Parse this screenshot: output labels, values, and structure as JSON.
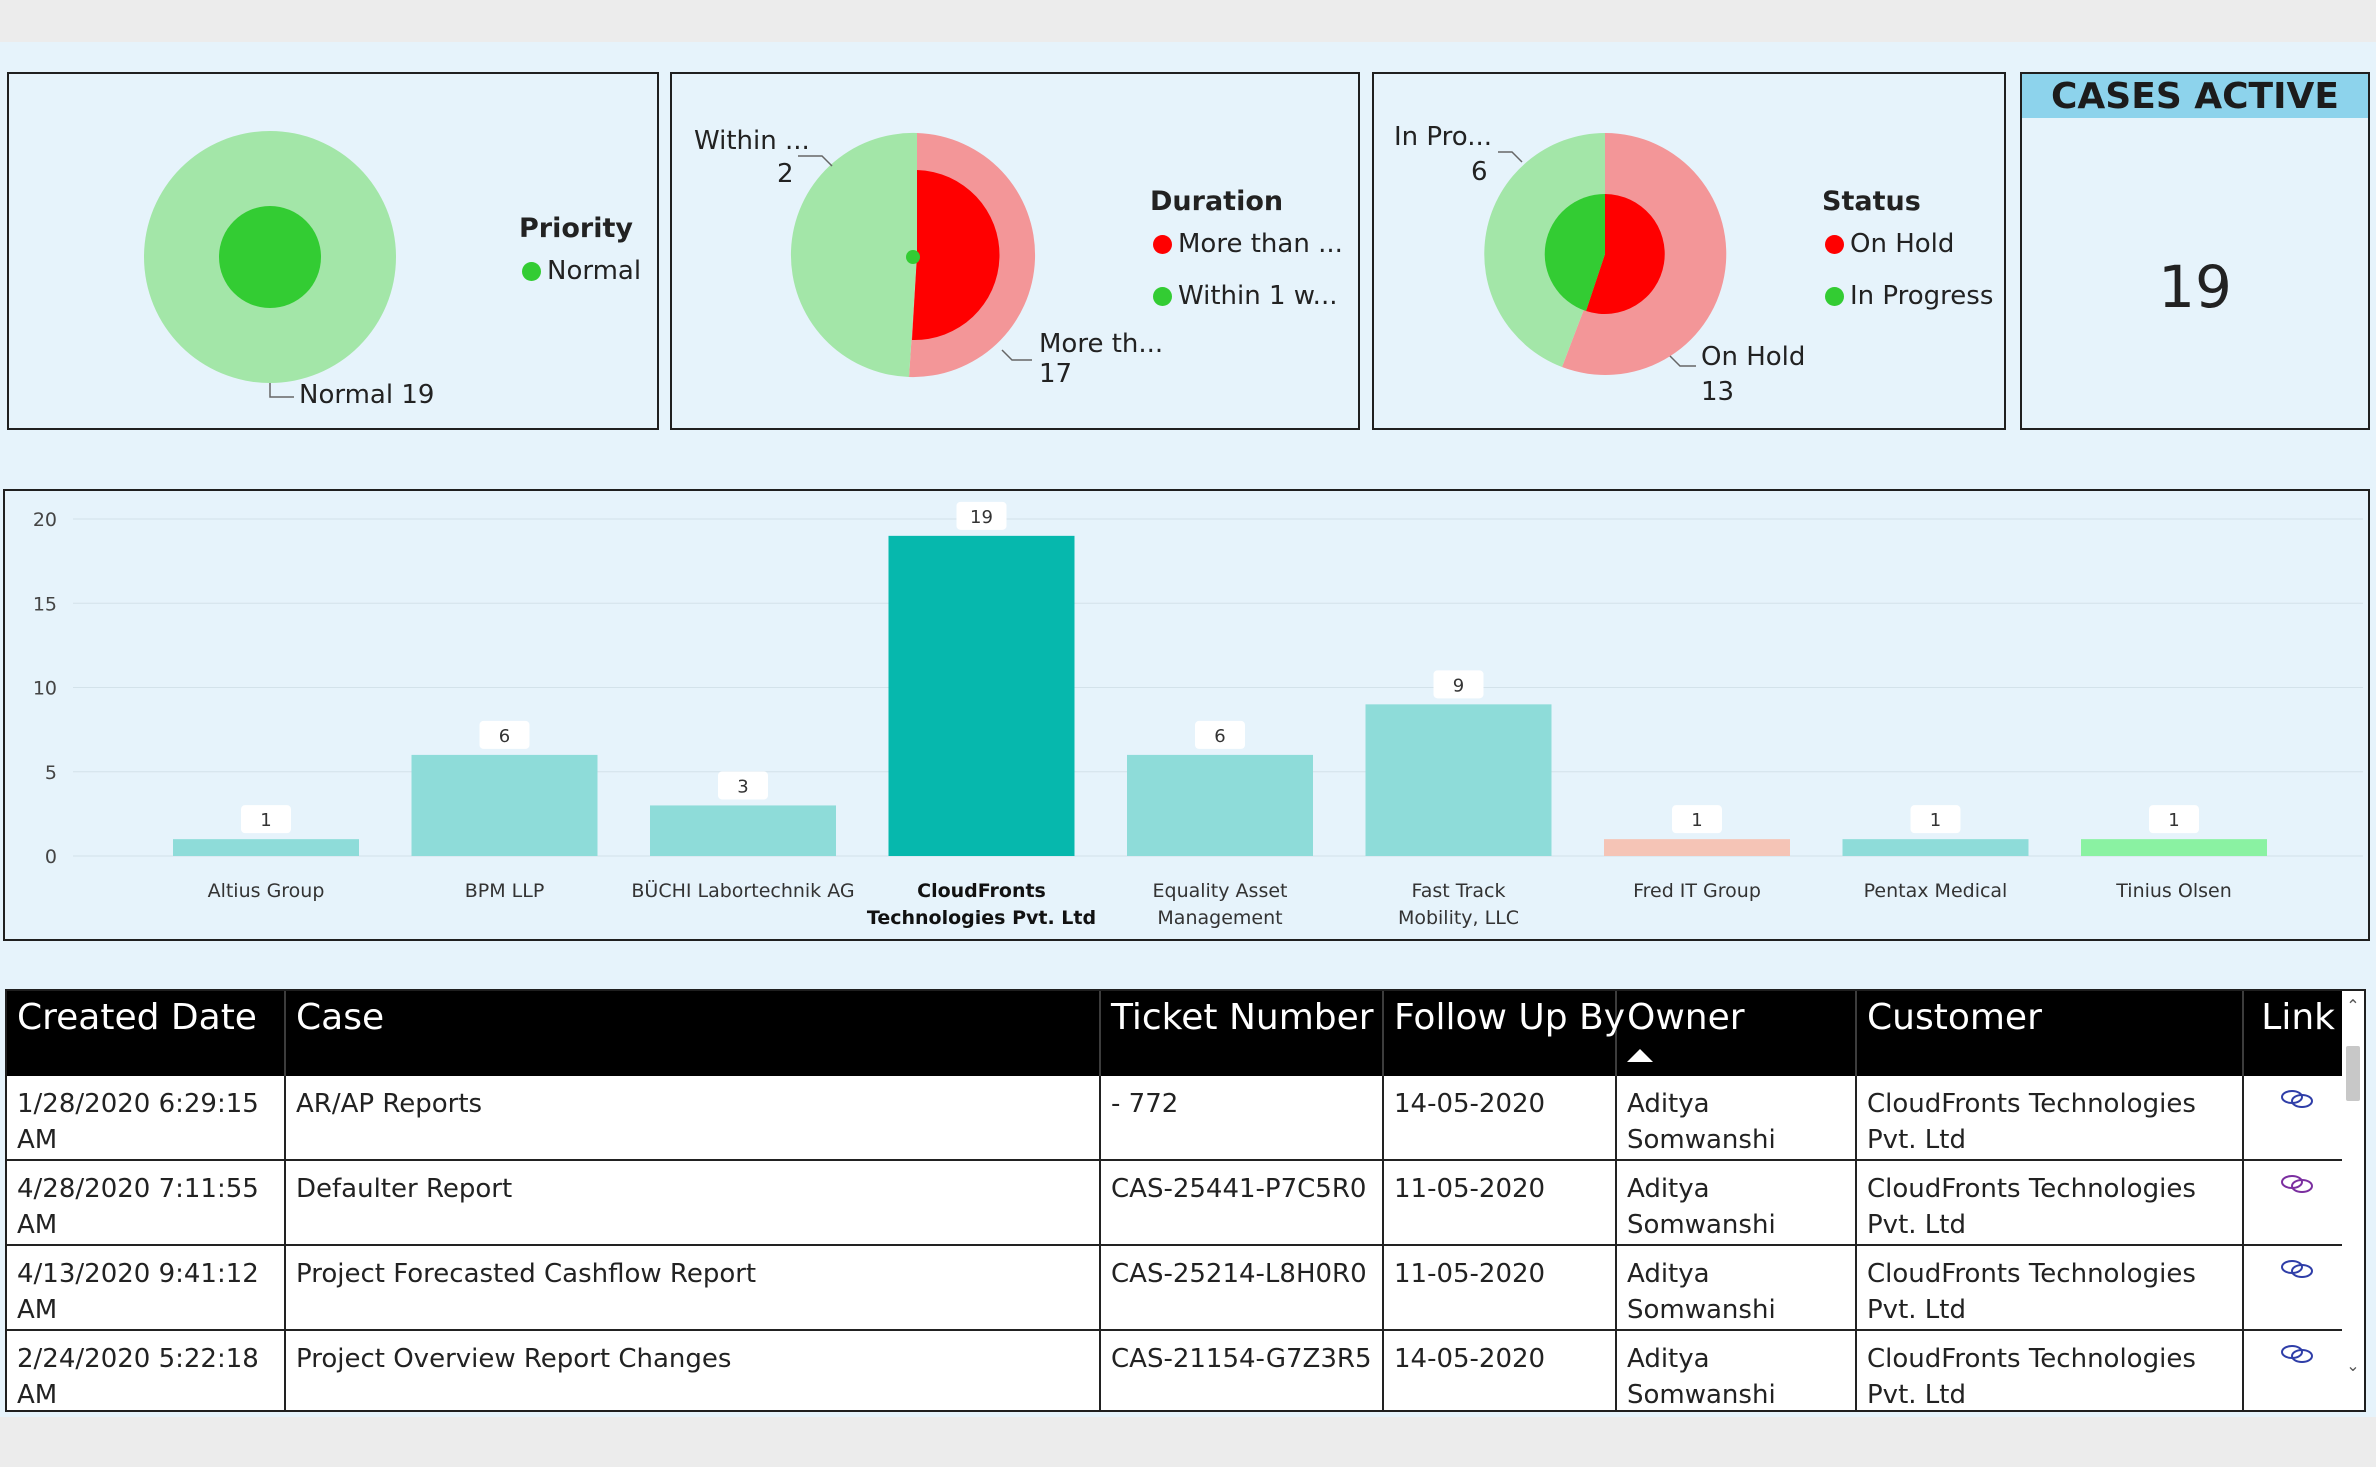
{
  "colors": {
    "green_dark": "#33cc33",
    "green_light": "#a3e6a8",
    "red_dark": "#ff0000",
    "red_light": "#f39698",
    "teal_dark": "#06b8ad",
    "teal_light": "#8edcd9",
    "salmon": "#f5c4b6",
    "mint": "#8af2a2",
    "kpi_header": "#8dd3ec"
  },
  "priority": {
    "legend_title": "Priority",
    "legend": [
      {
        "label": "Normal",
        "color": "#33cc33"
      }
    ],
    "slice_label": "Normal 19",
    "values": [
      {
        "name": "Normal",
        "value": 19
      }
    ]
  },
  "duration": {
    "legend_title": "Duration",
    "legend": [
      {
        "label": "More than ...",
        "color": "#ff0000"
      },
      {
        "label": "Within 1 w...",
        "color": "#33cc33"
      }
    ],
    "label_within_name": "Within ...",
    "label_within_value": "2",
    "label_more_name": "More th...",
    "label_more_value": "17"
  },
  "status": {
    "legend_title": "Status",
    "legend": [
      {
        "label": "On Hold",
        "color": "#ff0000"
      },
      {
        "label": "In Progress",
        "color": "#33cc33"
      }
    ],
    "label_inprogress_name": "In Pro...",
    "label_inprogress_value": "6",
    "label_onhold_name": "On Hold",
    "label_onhold_value": "13"
  },
  "kpi": {
    "title": "CASES ACTIVE",
    "value": "19"
  },
  "chart_data": {
    "type": "bar",
    "categories": [
      "Altius Group",
      "BPM LLP",
      "BÜCHI Labortechnik AG",
      "CloudFronts Technologies Pvt. Ltd",
      "Equality Asset Management",
      "Fast Track Mobility, LLC",
      "Fred IT Group",
      "Pentax Medical",
      "Tinius Olsen"
    ],
    "values": [
      1,
      6,
      3,
      19,
      6,
      9,
      1,
      1,
      1
    ],
    "bar_colors": [
      "#8edcd9",
      "#8edcd9",
      "#8edcd9",
      "#06b8ad",
      "#8edcd9",
      "#8edcd9",
      "#f5c4b6",
      "#8edcd9",
      "#8af2a2"
    ],
    "highlighted": "CloudFronts Technologies Pvt. Ltd",
    "ylim": [
      0,
      20
    ],
    "yticks": [
      0,
      5,
      10,
      15,
      20
    ],
    "grid": true
  },
  "table": {
    "headers": {
      "created": "Created Date",
      "case": "Case",
      "ticket": "Ticket Number",
      "follow": "Follow Up By",
      "owner": "Owner",
      "customer": "Customer",
      "link": "Link"
    },
    "rows": [
      {
        "created": "1/28/2020 6:29:15 AM",
        "case": "AR/AP Reports",
        "ticket": "- 772",
        "follow": "14-05-2020",
        "owner": "Aditya Somwanshi",
        "customer": "CloudFronts Technologies Pvt. Ltd",
        "link_icon": "link-icon",
        "link_color": "#2f3ea8"
      },
      {
        "created": "4/28/2020 7:11:55 AM",
        "case": "Defaulter Report",
        "ticket": "CAS-25441-P7C5R0",
        "follow": "11-05-2020",
        "owner": "Aditya Somwanshi",
        "customer": "CloudFronts Technologies Pvt. Ltd",
        "link_icon": "link-icon",
        "link_color": "#7b2fa0"
      },
      {
        "created": "4/13/2020 9:41:12 AM",
        "case": "Project Forecasted Cashflow Report",
        "ticket": "CAS-25214-L8H0R0",
        "follow": "11-05-2020",
        "owner": "Aditya Somwanshi",
        "customer": "CloudFronts Technologies Pvt. Ltd",
        "link_icon": "link-icon",
        "link_color": "#2f3ea8"
      },
      {
        "created": "2/24/2020 5:22:18 AM",
        "case": "Project Overview Report Changes",
        "ticket": "CAS-21154-G7Z3R5",
        "follow": "14-05-2020",
        "owner": "Aditya Somwanshi",
        "customer": "CloudFronts Technologies Pvt. Ltd",
        "link_icon": "link-icon",
        "link_color": "#2f3ea8"
      }
    ],
    "sort_column": "Owner",
    "sort_direction": "ascending"
  }
}
